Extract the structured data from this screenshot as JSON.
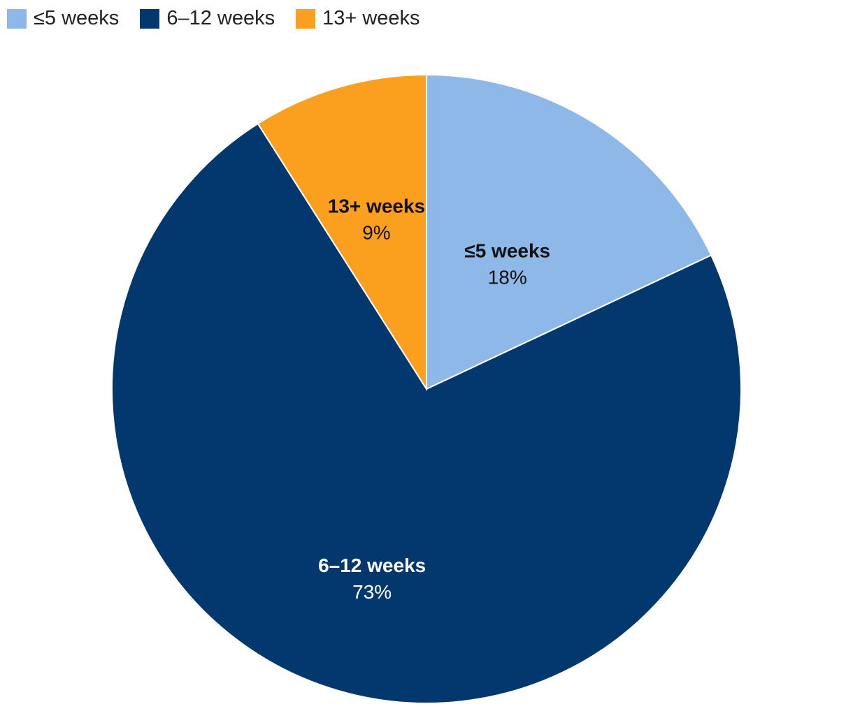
{
  "chart_data": {
    "type": "pie",
    "title": "",
    "start": "12 o'clock",
    "direction": "clockwise",
    "slices": [
      {
        "name": "≤5 weeks",
        "value": 18,
        "label": "18%",
        "color": "#8DB8E8",
        "text_color": "#111111"
      },
      {
        "name": "6–12 weeks",
        "value": 73,
        "label": "73%",
        "color": "#02386E",
        "text_color": "#FFFFFF"
      },
      {
        "name": "13+ weeks",
        "value": 9,
        "label": "9%",
        "color": "#FB9F1E",
        "text_color": "#111111"
      }
    ],
    "legend": {
      "position": "top-left",
      "items": [
        {
          "label": "≤5 weeks",
          "color": "#8DB8E8"
        },
        {
          "label": "6–12 weeks",
          "color": "#02386E"
        },
        {
          "label": "13+ weeks",
          "color": "#FB9F1E"
        }
      ]
    }
  }
}
